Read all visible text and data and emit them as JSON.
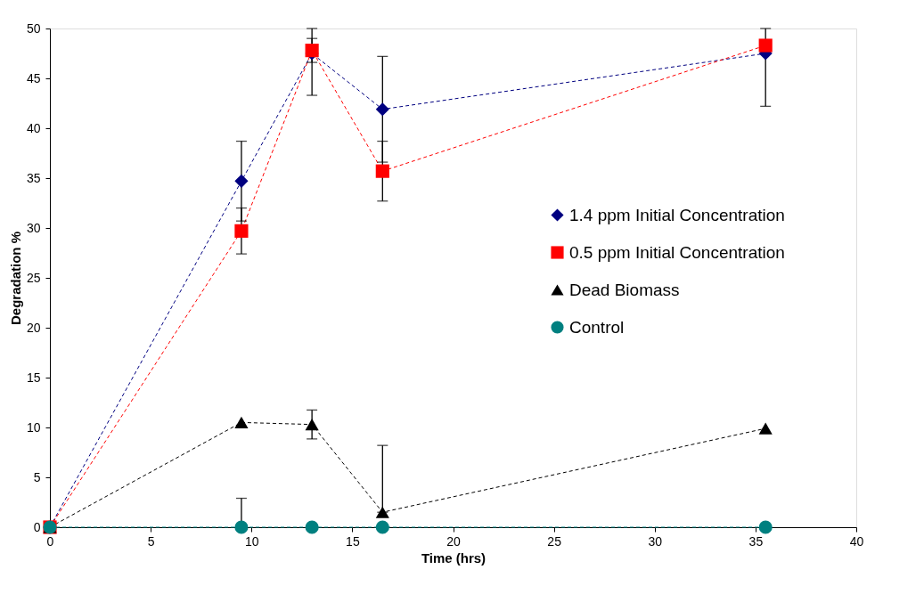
{
  "chart_data": {
    "type": "line",
    "xlabel": "Time (hrs)",
    "ylabel": "Degradation %",
    "x": [
      0,
      9.5,
      13,
      16.5,
      35.5
    ],
    "series": [
      {
        "name": "1.4 ppm Initial Concentration",
        "color": "#000080",
        "marker": "diamond",
        "values": [
          0,
          34.7,
          47.5,
          41.9,
          47.5
        ],
        "errors": [
          null,
          4.0,
          [
            43.3,
            50
          ],
          5.3,
          [
            42.2,
            50
          ]
        ]
      },
      {
        "name": "0.5 ppm Initial Concentration",
        "color": "#ff0000",
        "marker": "square",
        "values": [
          0,
          29.7,
          47.8,
          35.7,
          48.3
        ],
        "errors": [
          null,
          2.3,
          1.2,
          3.0,
          null
        ]
      },
      {
        "name": "Dead Biomass",
        "color": "#000000",
        "marker": "triangle",
        "values": [
          0,
          10.5,
          10.3,
          1.5,
          9.9
        ],
        "errors": [
          null,
          null,
          1.45,
          [
            1.5,
            8.2
          ],
          null
        ]
      },
      {
        "name": "Control",
        "color": "#008080",
        "marker": "circle",
        "values": [
          0,
          0,
          0,
          0,
          0
        ],
        "errors": [
          null,
          [
            0,
            2.9
          ],
          null,
          null,
          null
        ]
      }
    ],
    "xlim": [
      0,
      40
    ],
    "xticks": [
      0,
      5,
      10,
      15,
      20,
      25,
      30,
      35,
      40
    ],
    "ylim": [
      0,
      50
    ],
    "yticks": [
      0,
      5,
      10,
      15,
      20,
      25,
      30,
      35,
      40,
      45,
      50
    ],
    "line_style": "dashed",
    "grid": false,
    "legend": "right"
  }
}
